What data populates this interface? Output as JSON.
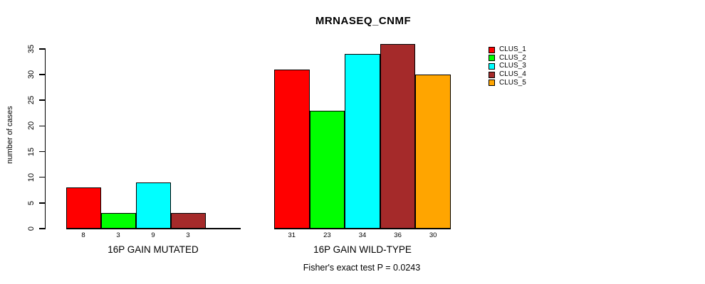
{
  "title": "MRNASEQ_CNMF",
  "footer": "Fisher's exact test P = 0.0243",
  "y_axis": {
    "label": "number of cases",
    "ticks": [
      0,
      5,
      10,
      15,
      20,
      25,
      30,
      35
    ]
  },
  "legend": {
    "position": "right",
    "entries": [
      {
        "label": "CLUS_1",
        "color": "#FF0000"
      },
      {
        "label": "CLUS_2",
        "color": "#00FF00"
      },
      {
        "label": "CLUS_3",
        "color": "#00FFFF"
      },
      {
        "label": "CLUS_4",
        "color": "#A52A2A"
      },
      {
        "label": "CLUS_5",
        "color": "#FFA500"
      }
    ]
  },
  "chart_data": {
    "type": "bar",
    "title": "MRNASEQ_CNMF",
    "xlabel": "",
    "ylabel": "number of cases",
    "ylim": [
      0,
      35
    ],
    "yticks": [
      0,
      5,
      10,
      15,
      20,
      25,
      30,
      35
    ],
    "grid": false,
    "legend_position": "right",
    "categories": [
      "16P GAIN MUTATED",
      "16P GAIN WILD-TYPE"
    ],
    "series": [
      {
        "name": "CLUS_1",
        "color": "#FF0000",
        "values": [
          8,
          31
        ]
      },
      {
        "name": "CLUS_2",
        "color": "#00FF00",
        "values": [
          3,
          23
        ]
      },
      {
        "name": "CLUS_3",
        "color": "#00FFFF",
        "values": [
          9,
          34
        ]
      },
      {
        "name": "CLUS_4",
        "color": "#A52A2A",
        "values": [
          3,
          36
        ]
      },
      {
        "name": "CLUS_5",
        "color": "#FFA500",
        "values": [
          0,
          30
        ]
      }
    ],
    "bar_value_labels": {
      "16P GAIN MUTATED": [
        8,
        3,
        9,
        3,
        null
      ],
      "16P GAIN WILD-TYPE": [
        31,
        23,
        34,
        36,
        30
      ]
    },
    "annotation": "Fisher's exact test P = 0.0243"
  }
}
